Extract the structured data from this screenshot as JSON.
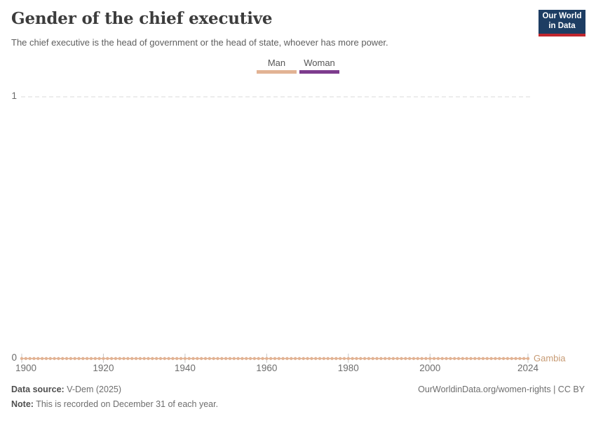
{
  "header": {
    "title": "Gender of the chief executive",
    "subtitle": "The chief executive is the head of government or the head of state, whoever has more power."
  },
  "logo": {
    "line1": "Our World",
    "line2": "in Data",
    "bg_color": "#1d3d63",
    "bar_color": "#c0262d"
  },
  "legend": {
    "items": [
      {
        "label": "Man",
        "color": "#e2b394"
      },
      {
        "label": "Woman",
        "color": "#7d3c8e"
      }
    ]
  },
  "chart_data": {
    "type": "line",
    "title": "Gender of the chief executive",
    "entity": "Gambia",
    "x": {
      "start": 1900,
      "end": 2024,
      "step": 1
    },
    "series": [
      {
        "name": "Gambia",
        "legend_category": "Man",
        "color": "#e2b394",
        "label_color": "#c79b74",
        "value_all_years": 0
      }
    ],
    "x_ticks": [
      1900,
      1920,
      1940,
      1960,
      1980,
      2000,
      2024
    ],
    "y_ticks": [
      0,
      1
    ],
    "ylim": [
      0,
      1
    ],
    "xlim": [
      1900,
      2024
    ],
    "grid": "horizontal-dashed-at-1",
    "gridline_color": "#d8d8d8",
    "tick_color": "#c8c8c8",
    "marker": "dot-every-year",
    "legend_position": "top-center"
  },
  "footer": {
    "source_label": "Data source:",
    "source_value": " V-Dem (2025)",
    "note_label": "Note:",
    "note_value": " This is recorded on December 31 of each year.",
    "link": "OurWorldinData.org/women-rights | CC BY"
  }
}
